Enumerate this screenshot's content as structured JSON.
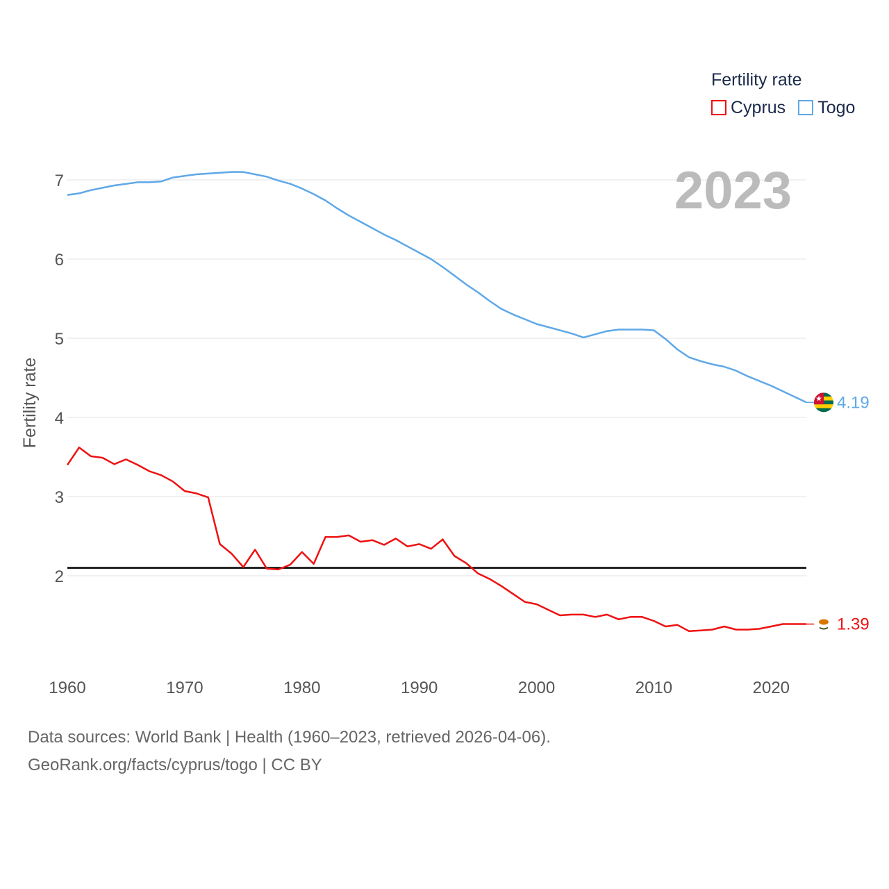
{
  "legend": {
    "title": "Fertility rate",
    "items": [
      {
        "name": "Cyprus",
        "color": "#ee1111"
      },
      {
        "name": "Togo",
        "color": "#5ea8e8"
      }
    ]
  },
  "year_display": "2023",
  "footer": {
    "line1": "Data sources: World Bank | Health (1960–2023, retrieved 2026-04-06).",
    "line2": "GeoRank.org/facts/cyprus/togo | CC BY"
  },
  "chart_data": {
    "type": "line",
    "title": "Fertility rate",
    "xlabel": "",
    "ylabel": "Fertility rate",
    "xlim": [
      1960,
      2023
    ],
    "ylim": [
      1,
      7.3
    ],
    "x_ticks": [
      1960,
      1970,
      1980,
      1990,
      2000,
      2010,
      2020
    ],
    "y_ticks": [
      2,
      3,
      4,
      5,
      6,
      7
    ],
    "reference_line": 2.1,
    "grid": true,
    "x": [
      1960,
      1961,
      1962,
      1963,
      1964,
      1965,
      1966,
      1967,
      1968,
      1969,
      1970,
      1971,
      1972,
      1973,
      1974,
      1975,
      1976,
      1977,
      1978,
      1979,
      1980,
      1981,
      1982,
      1983,
      1984,
      1985,
      1986,
      1987,
      1988,
      1989,
      1990,
      1991,
      1992,
      1993,
      1994,
      1995,
      1996,
      1997,
      1998,
      1999,
      2000,
      2001,
      2002,
      2003,
      2004,
      2005,
      2006,
      2007,
      2008,
      2009,
      2010,
      2011,
      2012,
      2013,
      2014,
      2015,
      2016,
      2017,
      2018,
      2019,
      2020,
      2021,
      2022,
      2023
    ],
    "series": [
      {
        "name": "Togo",
        "color": "#5ea8e8",
        "end_label": "4.19",
        "values": [
          6.81,
          6.83,
          6.87,
          6.9,
          6.93,
          6.95,
          6.97,
          6.97,
          6.98,
          7.03,
          7.05,
          7.07,
          7.08,
          7.09,
          7.1,
          7.1,
          7.07,
          7.04,
          6.99,
          6.95,
          6.89,
          6.82,
          6.74,
          6.64,
          6.55,
          6.47,
          6.39,
          6.31,
          6.24,
          6.16,
          6.08,
          6.0,
          5.9,
          5.79,
          5.68,
          5.58,
          5.47,
          5.37,
          5.3,
          5.24,
          5.18,
          5.14,
          5.1,
          5.06,
          5.01,
          5.05,
          5.09,
          5.11,
          5.11,
          5.11,
          5.1,
          4.99,
          4.86,
          4.76,
          4.71,
          4.67,
          4.64,
          4.59,
          4.52,
          4.46,
          4.4,
          4.33,
          4.26,
          4.19
        ]
      },
      {
        "name": "Cyprus",
        "color": "#ee1111",
        "end_label": "1.39",
        "values": [
          3.4,
          3.62,
          3.51,
          3.49,
          3.41,
          3.47,
          3.4,
          3.32,
          3.27,
          3.19,
          3.07,
          3.04,
          2.99,
          2.4,
          2.28,
          2.11,
          2.33,
          2.09,
          2.08,
          2.14,
          2.3,
          2.15,
          2.49,
          2.49,
          2.51,
          2.43,
          2.45,
          2.39,
          2.47,
          2.37,
          2.4,
          2.34,
          2.46,
          2.25,
          2.16,
          2.03,
          1.96,
          1.87,
          1.77,
          1.67,
          1.64,
          1.57,
          1.5,
          1.51,
          1.51,
          1.48,
          1.51,
          1.45,
          1.48,
          1.48,
          1.43,
          1.36,
          1.38,
          1.3,
          1.31,
          1.32,
          1.36,
          1.32,
          1.32,
          1.33,
          1.36,
          1.39,
          1.39,
          1.39
        ]
      }
    ]
  }
}
